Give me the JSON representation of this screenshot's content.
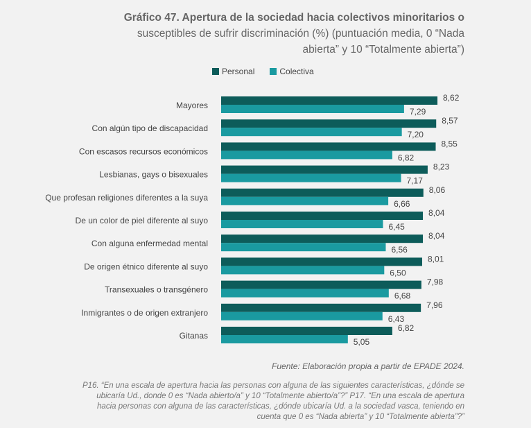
{
  "title_bold": "Gráfico 47. Apertura de la sociedad hacia colectivos minoritarios o",
  "title_rest": "susceptibles de sufrir discriminación (%) (puntuación media,  0 “Nada abierta” y 10 “Totalmente abierta”)",
  "source": "Fuente: Elaboración propia a partir de EPADE 2024.",
  "note": "P16. “En una escala de apertura hacia las personas con alguna de las siguientes características, ¿dónde se ubicaría Ud., donde 0 es “Nada abierto/a” y 10 “Totalmente abierto/a”?” P17. “En una escala de apertura hacia personas con alguna de las características, ¿dónde ubicaría Ud. a la sociedad vasca, teniendo en cuenta que 0 es “Nada abierta” y 10 “Totalmente abierta”?”",
  "chart_data": {
    "type": "bar",
    "orientation": "horizontal",
    "categories": [
      "Mayores",
      "Con algún tipo de discapacidad",
      "Con escasos recursos económicos",
      "Lesbianas, gays o bisexuales",
      "Que profesan religiones diferentes a la suya",
      "De un color de piel diferente al suyo",
      "Con alguna enfermedad mental",
      "De origen étnico diferente al suyo",
      "Transexuales o transgénero",
      "Inmigrantes o de origen extranjero",
      "Gitanas"
    ],
    "series": [
      {
        "name": "Personal",
        "color": "#0d5c5a",
        "values": [
          8.62,
          8.57,
          8.55,
          8.23,
          8.06,
          8.04,
          8.04,
          8.01,
          7.98,
          7.96,
          6.82
        ],
        "labels": [
          "8,62",
          "8,57",
          "8,55",
          "8,23",
          "8,06",
          "8,04",
          "8,04",
          "8,01",
          "7,98",
          "7,96",
          "6,82"
        ]
      },
      {
        "name": "Colectiva",
        "color": "#1a9aa0",
        "values": [
          7.29,
          7.2,
          6.82,
          7.17,
          6.66,
          6.45,
          6.56,
          6.5,
          6.68,
          6.43,
          5.05
        ],
        "labels": [
          "7,29",
          "7,20",
          "6,82",
          "7,17",
          "6,66",
          "6,45",
          "6,56",
          "6,50",
          "6,68",
          "6,43",
          "5,05"
        ]
      }
    ],
    "xlim": [
      0,
      10
    ],
    "grid": false,
    "legend_position": "top"
  }
}
